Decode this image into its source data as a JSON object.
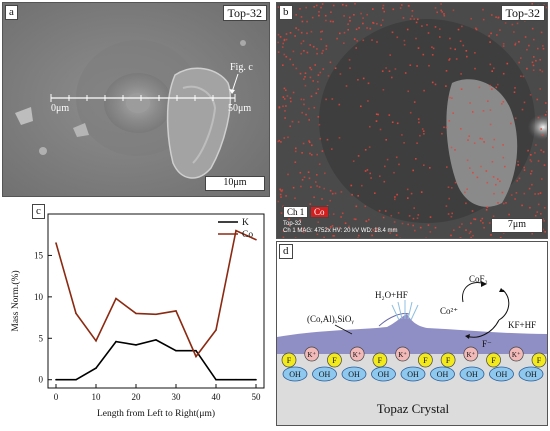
{
  "panel_a": {
    "label": "a",
    "tag": "Top-32",
    "fig_ref": "Fig. c",
    "line_start": "0μm",
    "line_end": "50μm",
    "scale": "10μm"
  },
  "panel_b": {
    "label": "b",
    "tag": "Top-32",
    "ch1": "Ch 1",
    "co": "Co",
    "info_line1": "Top-32",
    "info_line2": "Ch 1  MAG: 4752x  HV: 20 kV  WD: 18.4 mm",
    "scale": "7μm"
  },
  "panel_c": {
    "label": "c"
  },
  "panel_d": {
    "label": "d",
    "sio_label": "(Co,Al)ₓSiOᵧ",
    "h2o_label": "H₂O+HF",
    "cof_label": "CoF₂",
    "co_label": "Co²⁺",
    "kf_label": "KF+HF",
    "f_label": "F⁻",
    "crystal_label": "Topaz Crystal",
    "row1": [
      "F",
      "K⁺",
      "F",
      "K⁺",
      "F",
      "K⁺",
      "F",
      "F",
      "K⁺",
      "F",
      "K⁺",
      "F"
    ],
    "row2": [
      "OH",
      "OH",
      "OH",
      "OH",
      "OH",
      "OH",
      "OH",
      "OH",
      "OH"
    ],
    "colors": {
      "k_fill": "#f2b9b9",
      "f_fill": "#f3ea1e",
      "oh_fill": "#8ec8ee",
      "layer": "#8f8fc6",
      "crystal": "#dcdcdc"
    }
  },
  "chart_data": {
    "type": "line",
    "x": [
      0,
      5,
      10,
      15,
      20,
      25,
      30,
      35,
      40,
      45,
      50
    ],
    "series": [
      {
        "name": "K",
        "color": "#000000",
        "values": [
          0,
          0,
          1.4,
          4.6,
          4.2,
          4.8,
          3.5,
          3.5,
          0,
          0,
          0
        ]
      },
      {
        "name": "Co",
        "color": "#8b2a12",
        "values": [
          16.5,
          8,
          4.7,
          9.8,
          8,
          7.9,
          8.3,
          2.8,
          6,
          18,
          16.9
        ]
      }
    ],
    "xlabel": "Length from Left to Right(μm)",
    "ylabel": "Mass Norm.(%)",
    "xticks": [
      0,
      10,
      20,
      30,
      40,
      50
    ],
    "yticks": [
      0,
      5,
      10,
      15
    ],
    "xlim": [
      -2,
      52
    ],
    "ylim": [
      -1,
      20
    ],
    "legend": "top-right"
  }
}
